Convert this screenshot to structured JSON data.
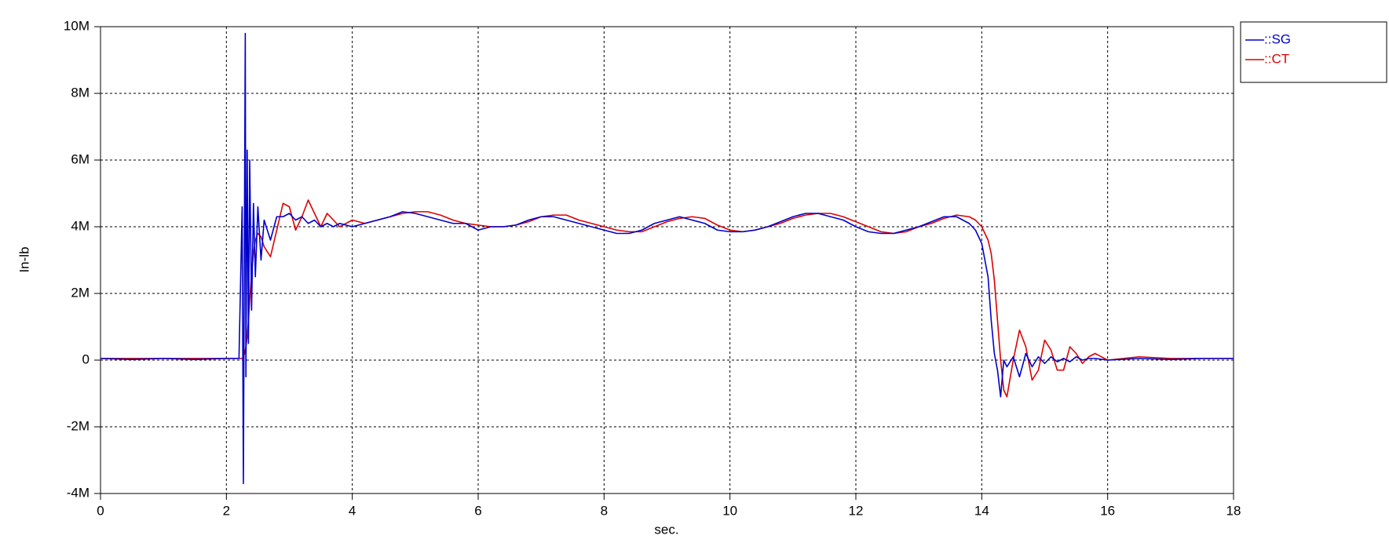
{
  "chart_data": {
    "type": "line",
    "y_label": "In-lb",
    "x_label": "sec.",
    "x": [
      0,
      0.5,
      1,
      1.5,
      2,
      2.2,
      2.25,
      2.27,
      2.29,
      2.3,
      2.31,
      2.33,
      2.35,
      2.37,
      2.4,
      2.43,
      2.46,
      2.5,
      2.55,
      2.6,
      2.7,
      2.8,
      2.9,
      3.0,
      3.1,
      3.2,
      3.3,
      3.4,
      3.5,
      3.6,
      3.7,
      3.8,
      4.0,
      4.2,
      4.4,
      4.6,
      4.8,
      5.0,
      5.2,
      5.4,
      5.6,
      5.8,
      6.0,
      6.2,
      6.4,
      6.6,
      6.8,
      7.0,
      7.2,
      7.4,
      7.6,
      7.8,
      8.0,
      8.2,
      8.4,
      8.6,
      8.8,
      9.0,
      9.2,
      9.4,
      9.6,
      9.8,
      10.0,
      10.2,
      10.4,
      10.6,
      10.8,
      11.0,
      11.2,
      11.4,
      11.6,
      11.8,
      12.0,
      12.2,
      12.4,
      12.6,
      12.8,
      13.0,
      13.2,
      13.4,
      13.6,
      13.8,
      13.9,
      14.0,
      14.1,
      14.15,
      14.2,
      14.25,
      14.3,
      14.35,
      14.4,
      14.5,
      14.6,
      14.7,
      14.8,
      14.9,
      15.0,
      15.1,
      15.2,
      15.3,
      15.4,
      15.5,
      15.6,
      15.7,
      15.8,
      16.0,
      16.5,
      17,
      17.5,
      18
    ],
    "series": [
      {
        "name": "::SG",
        "color": "#0000cc",
        "values": [
          50000,
          20000,
          50000,
          20000,
          50000,
          50000,
          4600000,
          -3700000,
          5500000,
          9800000,
          -500000,
          6300000,
          500000,
          6000000,
          1500000,
          4700000,
          2500000,
          4600000,
          3000000,
          4200000,
          3600000,
          4300000,
          4300000,
          4400000,
          4200000,
          4300000,
          4100000,
          4200000,
          4000000,
          4100000,
          4000000,
          4100000,
          4000000,
          4100000,
          4200000,
          4300000,
          4450000,
          4400000,
          4300000,
          4200000,
          4100000,
          4100000,
          3900000,
          4000000,
          4000000,
          4050000,
          4200000,
          4300000,
          4300000,
          4200000,
          4100000,
          4000000,
          3900000,
          3800000,
          3800000,
          3900000,
          4100000,
          4200000,
          4300000,
          4200000,
          4100000,
          3900000,
          3850000,
          3850000,
          3900000,
          4000000,
          4150000,
          4300000,
          4400000,
          4400000,
          4300000,
          4200000,
          4000000,
          3850000,
          3800000,
          3800000,
          3900000,
          4000000,
          4150000,
          4300000,
          4300000,
          4100000,
          3900000,
          3500000,
          2500000,
          1200000,
          200000,
          -300000,
          -1100000,
          0,
          -200000,
          100000,
          -500000,
          200000,
          -200000,
          100000,
          -100000,
          100000,
          -50000,
          50000,
          -50000,
          100000,
          0,
          50000,
          50000,
          0,
          50000,
          20000,
          50000,
          50000
        ]
      },
      {
        "name": "::CT",
        "color": "#dd0000",
        "values": [
          50000,
          50000,
          50000,
          50000,
          50000,
          50000,
          50000,
          100000,
          200000,
          300000,
          400000,
          700000,
          1200000,
          1800000,
          2600000,
          3200000,
          3600000,
          3800000,
          3700000,
          3400000,
          3100000,
          3900000,
          4700000,
          4600000,
          3900000,
          4300000,
          4800000,
          4400000,
          4000000,
          4400000,
          4200000,
          4000000,
          4200000,
          4100000,
          4200000,
          4300000,
          4400000,
          4450000,
          4450000,
          4350000,
          4200000,
          4100000,
          4050000,
          4000000,
          4000000,
          4050000,
          4150000,
          4300000,
          4350000,
          4350000,
          4200000,
          4100000,
          4000000,
          3900000,
          3850000,
          3850000,
          4000000,
          4150000,
          4250000,
          4300000,
          4250000,
          4050000,
          3900000,
          3850000,
          3900000,
          4000000,
          4100000,
          4250000,
          4350000,
          4400000,
          4400000,
          4300000,
          4150000,
          4000000,
          3850000,
          3800000,
          3850000,
          4000000,
          4100000,
          4250000,
          4350000,
          4300000,
          4200000,
          4000000,
          3600000,
          3200000,
          2400000,
          1200000,
          0,
          -900000,
          -1100000,
          0,
          900000,
          400000,
          -600000,
          -300000,
          600000,
          300000,
          -300000,
          -300000,
          400000,
          200000,
          -100000,
          100000,
          200000,
          0,
          100000,
          50000,
          50000,
          50000
        ]
      }
    ],
    "xlim": [
      0,
      18
    ],
    "xticks": [
      0,
      2,
      4,
      6,
      8,
      10,
      12,
      14,
      16,
      18
    ],
    "ylim": [
      -4000000,
      10000000
    ],
    "yticks": [
      {
        "value": -4000000,
        "label": "-4M"
      },
      {
        "value": -2000000,
        "label": "-2M"
      },
      0,
      {
        "value": 2000000,
        "label": "2M"
      },
      {
        "value": 4000000,
        "label": "4M"
      },
      {
        "value": 6000000,
        "label": "6M"
      },
      {
        "value": 8000000,
        "label": "8M"
      },
      {
        "value": 10000000,
        "label": "10M"
      }
    ],
    "grid": true,
    "legend": "right"
  }
}
